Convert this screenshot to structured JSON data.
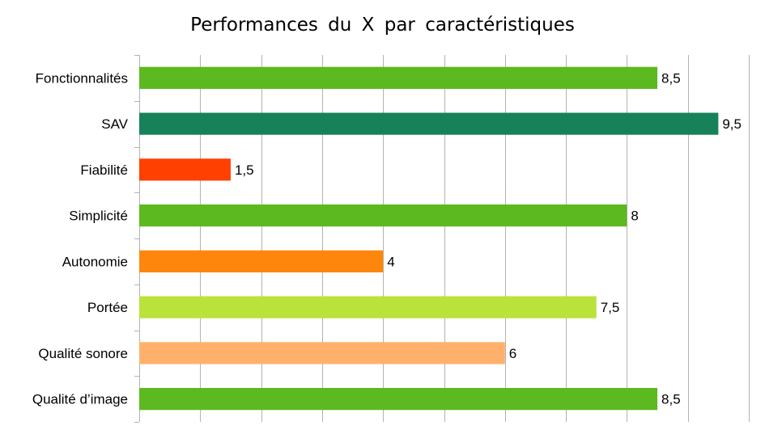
{
  "chart_data": {
    "type": "bar",
    "orientation": "horizontal",
    "title": "Performances du X par caractéristiques",
    "xlabel": "",
    "ylabel": "",
    "categories": [
      "Fonctionnalités",
      "SAV",
      "Fiabilité",
      "Simplicité",
      "Autonomie",
      "Portée",
      "Qualité sonore",
      "Qualité d’image"
    ],
    "values": [
      8.5,
      9.5,
      1.5,
      8,
      4,
      7.5,
      6,
      8.5
    ],
    "value_labels": [
      "8,5",
      "9,5",
      "1,5",
      "8",
      "4",
      "7,5",
      "6",
      "8,5"
    ],
    "colors": [
      "#5cb91f",
      "#17825a",
      "#ff4000",
      "#5cb91f",
      "#ff860d",
      "#b9e33a",
      "#ffb16c",
      "#5cb91f"
    ],
    "xlim": [
      0,
      10
    ],
    "x_grid_step": 1,
    "grid": true,
    "legend": "none"
  }
}
